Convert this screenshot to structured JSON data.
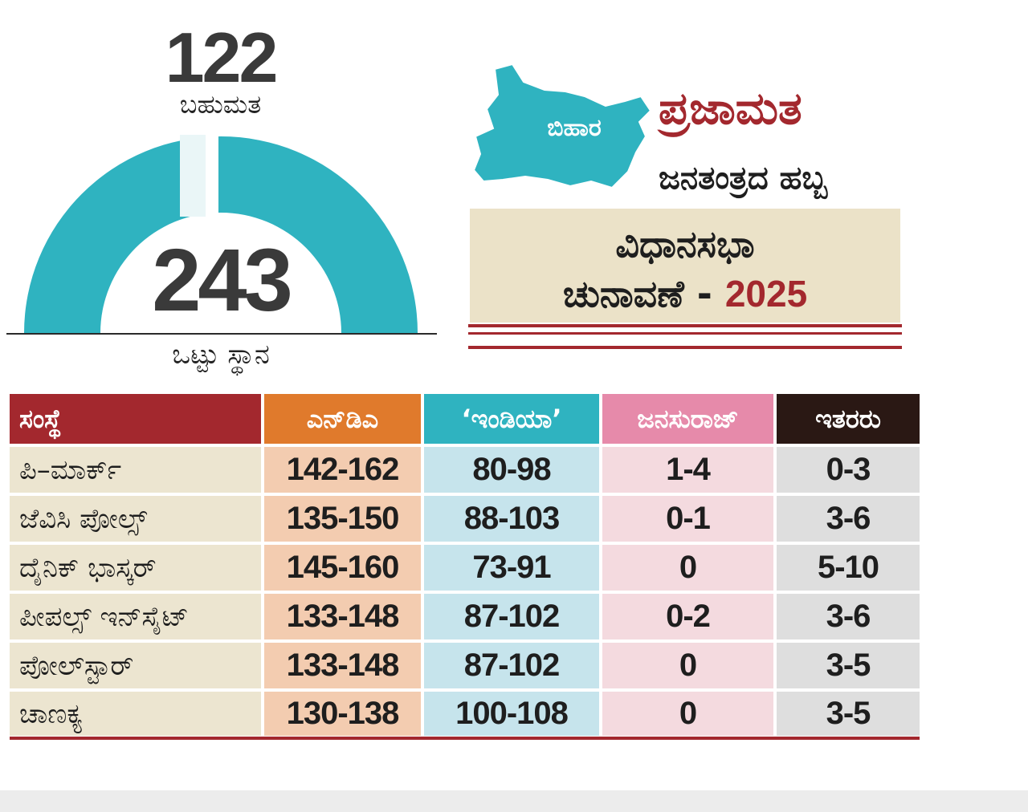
{
  "gauge": {
    "majority_number": "122",
    "majority_label": "ಬಹುಮತ",
    "total_number": "243",
    "total_label": "ಒಟ್ಟು ಸ್ಥಾನ",
    "gauge_color": "#2fb3c0"
  },
  "branding": {
    "state_label": "ಬಿಹಾರ",
    "name": "ಪ್ರಜಾಮತ",
    "tagline": "ಜನತಂತ್ರದ ಹಬ್ಬ",
    "title_line1": "ವಿಧಾನಸಭಾ",
    "title_line2_prefix": "ಚುನಾವಣೆ - ",
    "title_year": "2025",
    "accent_color": "#a3282e",
    "box_color": "#ebe2c8"
  },
  "table": {
    "headers": [
      {
        "label": "ಸಂಸ್ಥೆ",
        "color": "#a3282e"
      },
      {
        "label": "ಎನ್‌ಡಿಎ",
        "color": "#e07a2c"
      },
      {
        "label": "‘ಇಂಡಿಯಾ’",
        "color": "#2fb3c0"
      },
      {
        "label": "ಜನಸುರಾಜ್",
        "color": "#e68aaa"
      },
      {
        "label": "ಇತರರು",
        "color": "#2a1814"
      }
    ],
    "column_fills": [
      "#ece5d0",
      "#f3ccb0",
      "#c6e4ec",
      "#f4dadf",
      "#dedede"
    ],
    "rows": [
      {
        "agency": "ಪಿ–ಮಾರ್ಕ್",
        "nda": "142-162",
        "india": "80-98",
        "jansuraj": "1-4",
        "others": "0-3"
      },
      {
        "agency": "ಜೆವಿಸಿ ಪೋಲ್ಸ್",
        "nda": "135-150",
        "india": "88-103",
        "jansuraj": "0-1",
        "others": "3-6"
      },
      {
        "agency": "ದೈನಿಕ್ ಭಾಸ್ಕರ್",
        "nda": "145-160",
        "india": "73-91",
        "jansuraj": "0",
        "others": "5-10"
      },
      {
        "agency": "ಪೀಪಲ್ಸ್ ಇನ್‌ಸೈಟ್",
        "nda": "133-148",
        "india": "87-102",
        "jansuraj": "0-2",
        "others": "3-6"
      },
      {
        "agency": "ಪೋಲ್‌ಸ್ಟಾರ್",
        "nda": "133-148",
        "india": "87-102",
        "jansuraj": "0",
        "others": "3-5"
      },
      {
        "agency": "ಚಾಣಕ್ಯ",
        "nda": "130-138",
        "india": "100-108",
        "jansuraj": "0",
        "others": "3-5"
      }
    ]
  }
}
